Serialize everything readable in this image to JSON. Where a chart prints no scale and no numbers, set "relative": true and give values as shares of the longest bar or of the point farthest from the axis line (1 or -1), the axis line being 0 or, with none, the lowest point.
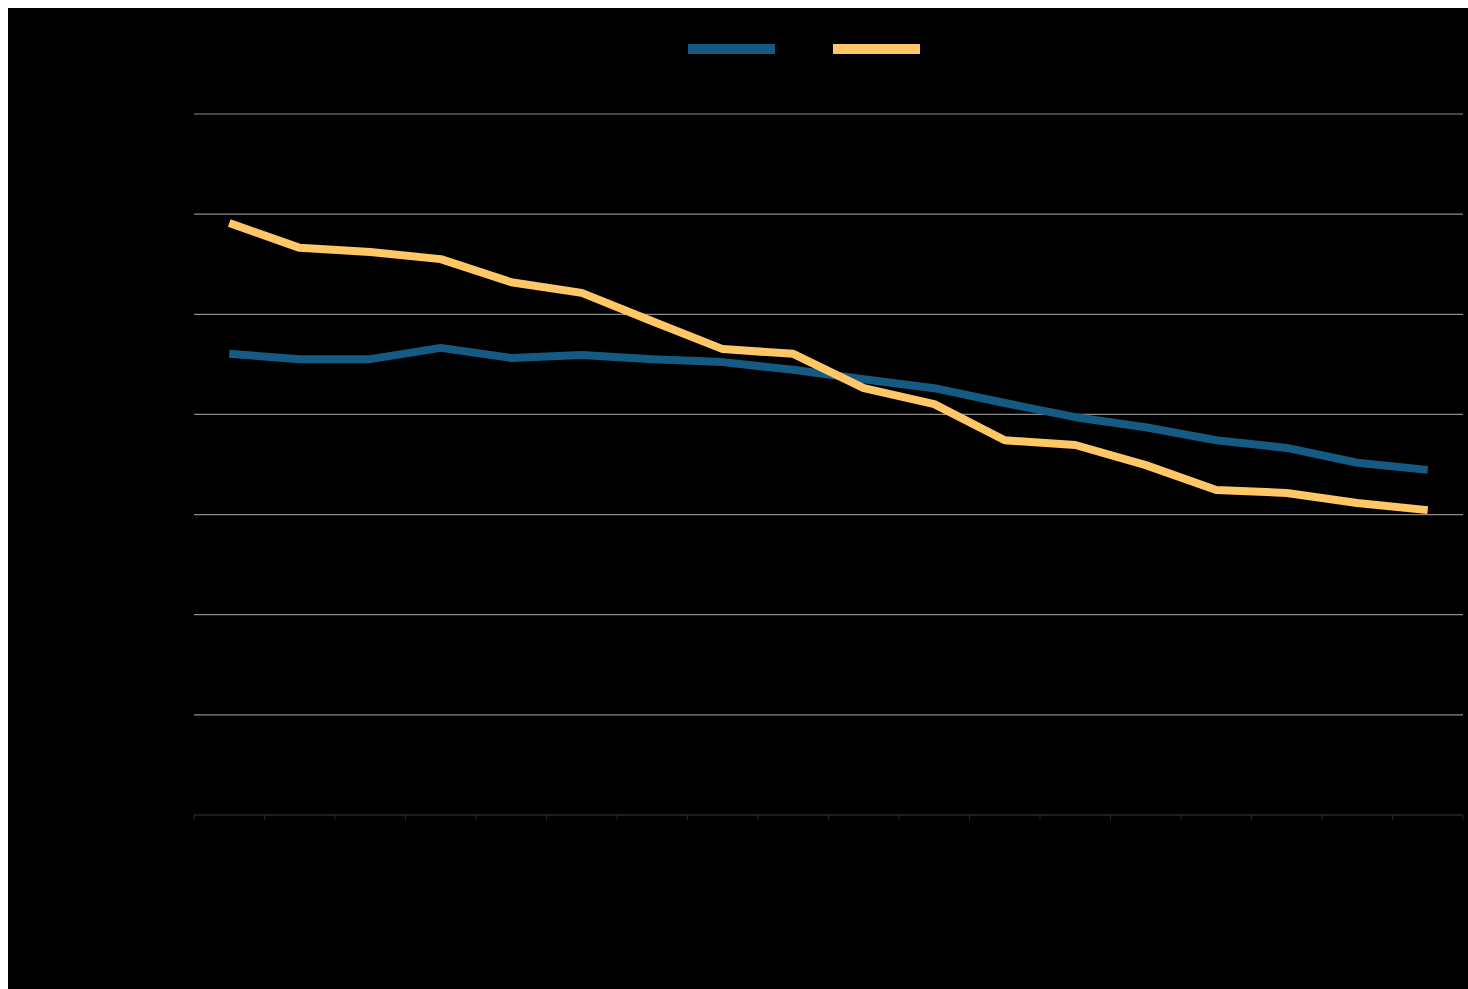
{
  "chart_data": {
    "type": "line",
    "relative": true,
    "grid": "y",
    "marker": "none",
    "line_style": "solid",
    "categories": [
      null,
      null,
      null,
      null,
      null,
      null,
      null,
      null,
      null,
      null,
      null,
      null,
      null,
      null,
      null,
      null,
      null,
      null
    ],
    "series": [
      {
        "color": "#155a83",
        "values": [
          0.779,
          0.77,
          0.77,
          0.789,
          0.772,
          0.777,
          0.77,
          0.765,
          0.752,
          0.736,
          0.721,
          0.696,
          0.672,
          0.655,
          0.633,
          0.62,
          0.595,
          0.583
        ]
      },
      {
        "color": "#ffc766",
        "values": [
          1,
          0.958,
          0.951,
          0.939,
          0.9,
          0.882,
          0.834,
          0.787,
          0.779,
          0.721,
          0.694,
          0.633,
          0.625,
          0.591,
          0.549,
          0.544,
          0.527,
          0.515
        ]
      }
    ]
  }
}
